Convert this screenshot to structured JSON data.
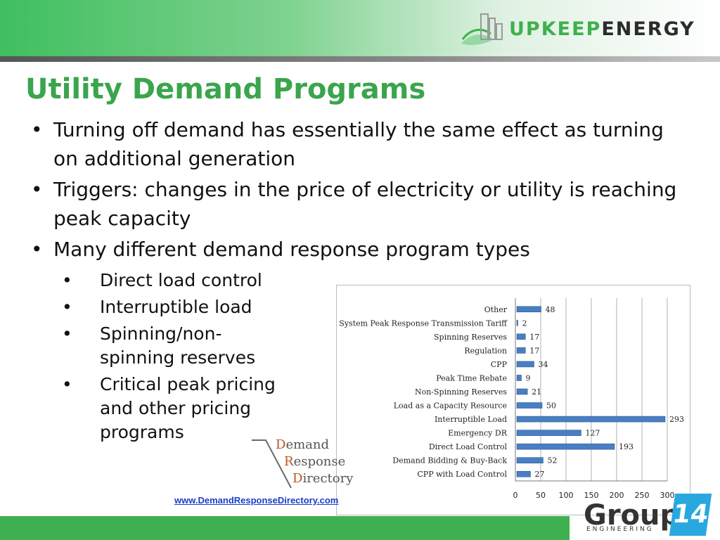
{
  "header": {
    "logo": {
      "part1": "UPKEEP",
      "part2": "ENERGY"
    }
  },
  "slide": {
    "title": "Utility Demand Programs",
    "bullets": [
      "Turning off demand has essentially the same effect as turning on additional generation",
      "Triggers: changes in the price of electricity or utility is reaching peak capacity",
      "Many different demand response program types"
    ],
    "sub_bullets": [
      "Direct load control",
      "Interruptible load",
      "Spinning/non-spinning reserves",
      "Critical peak pricing and other pricing programs"
    ]
  },
  "chart_data": {
    "type": "bar",
    "orientation": "horizontal",
    "categories": [
      "Other",
      "System Peak Response Transmission Tariff",
      "Spinning Reserves",
      "Regulation",
      "CPP",
      "Peak Time Rebate",
      "Non-Spinning Reserves",
      "Load as a Capacity Resource",
      "Interruptible Load",
      "Emergency DR",
      "Direct Load Control",
      "Demand Bidding & Buy-Back",
      "CPP with Load Control"
    ],
    "values": [
      48,
      2,
      17,
      17,
      34,
      9,
      21,
      50,
      293,
      127,
      193,
      52,
      27
    ],
    "xticks": [
      0,
      50,
      100,
      150,
      200,
      250,
      300
    ],
    "xlim": [
      0,
      300
    ],
    "grid": true,
    "bar_color": "#4a7ec3"
  },
  "drd_logo": {
    "line1_cap": "D",
    "line1_rest": "emand",
    "line2_cap": "R",
    "line2_rest": "esponse",
    "line3_cap": "D",
    "line3_rest": "irectory"
  },
  "link_text": "www.DemandResponseDirectory.com",
  "footer": {
    "group_word": "Group",
    "group_num": "14",
    "group_sub": "ENGINEERING"
  }
}
